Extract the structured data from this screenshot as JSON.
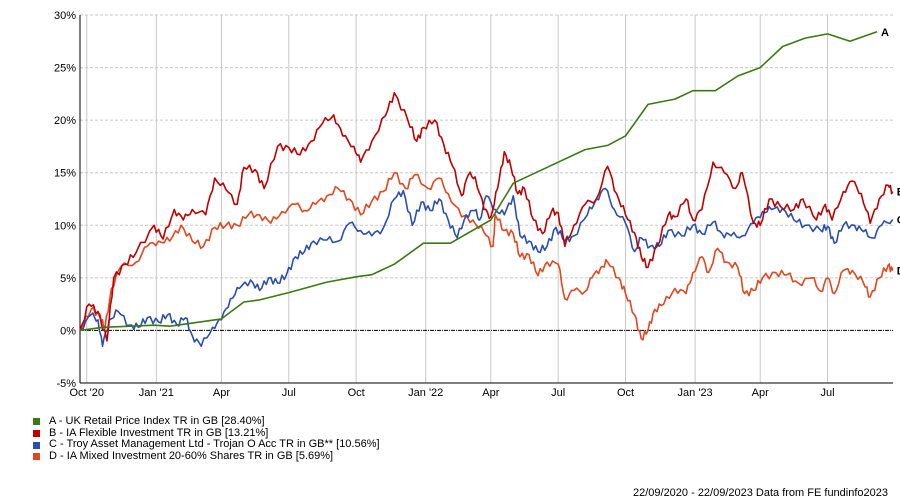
{
  "chart_data": {
    "type": "line",
    "title": "",
    "xlabel": "",
    "ylabel": "",
    "x_unit": "months since 22/09/2020",
    "ylim": [
      -5,
      30
    ],
    "xlim": [
      0,
      36.2
    ],
    "yticks": [
      {
        "value": 30,
        "label": "30%"
      },
      {
        "value": 25,
        "label": "25%"
      },
      {
        "value": 20,
        "label": "20%"
      },
      {
        "value": 15,
        "label": "15%"
      },
      {
        "value": 10,
        "label": "10%"
      },
      {
        "value": 5,
        "label": "5%"
      },
      {
        "value": 0,
        "label": "0%"
      },
      {
        "value": -5,
        "label": "-5%"
      }
    ],
    "xticks": [
      {
        "value": 0.3,
        "label": "Oct '20"
      },
      {
        "value": 3.4,
        "label": "Jan '21"
      },
      {
        "value": 6.3,
        "label": "Apr"
      },
      {
        "value": 9.3,
        "label": "Jul"
      },
      {
        "value": 12.3,
        "label": "Oct"
      },
      {
        "value": 15.4,
        "label": "Jan '22"
      },
      {
        "value": 18.3,
        "label": "Apr"
      },
      {
        "value": 21.3,
        "label": "Jul"
      },
      {
        "value": 24.3,
        "label": "Oct"
      },
      {
        "value": 27.4,
        "label": "Jan '23"
      },
      {
        "value": 30.3,
        "label": "Apr"
      },
      {
        "value": 33.3,
        "label": "Jul"
      }
    ],
    "grid": true,
    "legend_placement": "bottom-left",
    "series": [
      {
        "name": "A - UK Retail Price Index TR in GB [28.40%]",
        "end_label": "A",
        "color": "#3a7a12",
        "points": [
          [
            0,
            0
          ],
          [
            1,
            0.3
          ],
          [
            3.3,
            0.5
          ],
          [
            4,
            0.4
          ],
          [
            5,
            0.7
          ],
          [
            6.3,
            1.1
          ],
          [
            7.3,
            2.7
          ],
          [
            8,
            2.9
          ],
          [
            9.3,
            3.6
          ],
          [
            11,
            4.6
          ],
          [
            12.3,
            5.1
          ],
          [
            13,
            5.3
          ],
          [
            14,
            6.3
          ],
          [
            15.3,
            8.3
          ],
          [
            16.5,
            8.3
          ],
          [
            18.3,
            10.5
          ],
          [
            19.3,
            14.0
          ],
          [
            21.3,
            16.0
          ],
          [
            22.5,
            17.2
          ],
          [
            23.5,
            17.6
          ],
          [
            24.3,
            18.5
          ],
          [
            25.3,
            21.5
          ],
          [
            26.5,
            22.0
          ],
          [
            27.3,
            22.8
          ],
          [
            28.3,
            22.8
          ],
          [
            29.3,
            24.2
          ],
          [
            30.3,
            25.0
          ],
          [
            31.3,
            27.0
          ],
          [
            32.3,
            27.8
          ],
          [
            33.3,
            28.2
          ],
          [
            34.3,
            27.5
          ],
          [
            35.5,
            28.4
          ]
        ]
      },
      {
        "name": "B - IA Flexible Investment TR in GB [13.21%]",
        "end_label": "B",
        "color": "#c00000",
        "points": [
          [
            0,
            0
          ],
          [
            0.4,
            2.5
          ],
          [
            0.8,
            1.8
          ],
          [
            1.2,
            -1
          ],
          [
            1.5,
            5.0
          ],
          [
            2,
            6.3
          ],
          [
            2.5,
            7.4
          ],
          [
            3.3,
            10
          ],
          [
            3.7,
            8.7
          ],
          [
            4.2,
            11.5
          ],
          [
            4.6,
            10.5
          ],
          [
            5,
            11.5
          ],
          [
            5.6,
            11
          ],
          [
            6,
            14.5
          ],
          [
            6.5,
            13.4
          ],
          [
            7,
            12.0
          ],
          [
            7.3,
            15.5
          ],
          [
            7.8,
            15.3
          ],
          [
            8.2,
            13.5
          ],
          [
            8.8,
            17.5
          ],
          [
            9.3,
            17.4
          ],
          [
            9.8,
            16.7
          ],
          [
            10.3,
            18.0
          ],
          [
            10.8,
            19.7
          ],
          [
            11.3,
            20.5
          ],
          [
            11.7,
            18.5
          ],
          [
            12.2,
            17.5
          ],
          [
            12.5,
            16.0
          ],
          [
            13,
            18.0
          ],
          [
            13.6,
            20.4
          ],
          [
            14.0,
            22.6
          ],
          [
            14.6,
            20.0
          ],
          [
            15,
            18.0
          ],
          [
            15.3,
            19.3
          ],
          [
            15.8,
            20.0
          ],
          [
            16.2,
            17.7
          ],
          [
            16.6,
            15.6
          ],
          [
            17,
            12.8
          ],
          [
            17.3,
            14.8
          ],
          [
            17.6,
            14.6
          ],
          [
            18,
            11.5
          ],
          [
            18.3,
            10.8
          ],
          [
            18.6,
            13.5
          ],
          [
            18.9,
            17.0
          ],
          [
            19.2,
            15.5
          ],
          [
            19.5,
            13.0
          ],
          [
            19.8,
            13.5
          ],
          [
            20.2,
            10.5
          ],
          [
            20.6,
            9.2
          ],
          [
            21.0,
            11.3
          ],
          [
            21.3,
            11.2
          ],
          [
            21.6,
            8.0
          ],
          [
            22,
            10.0
          ],
          [
            22.5,
            12.0
          ],
          [
            23,
            12.5
          ],
          [
            23.5,
            15.6
          ],
          [
            23.9,
            13.0
          ],
          [
            24.3,
            11.0
          ],
          [
            24.7,
            9.3
          ],
          [
            25,
            7.0
          ],
          [
            25.3,
            6.0
          ],
          [
            25.7,
            8.0
          ],
          [
            26.2,
            11.0
          ],
          [
            26.5,
            10.8
          ],
          [
            27,
            12.5
          ],
          [
            27.3,
            10.5
          ],
          [
            27.7,
            11.5
          ],
          [
            28.2,
            16.0
          ],
          [
            28.7,
            15.0
          ],
          [
            29.2,
            13.5
          ],
          [
            29.5,
            15.0
          ],
          [
            30,
            10.2
          ],
          [
            30.3,
            10.0
          ],
          [
            30.7,
            12.5
          ],
          [
            31.2,
            11.8
          ],
          [
            31.8,
            11.5
          ],
          [
            32.2,
            12.5
          ],
          [
            32.8,
            10.5
          ],
          [
            33.2,
            12.0
          ],
          [
            33.5,
            10.5
          ],
          [
            34,
            13.2
          ],
          [
            34.4,
            14.2
          ],
          [
            34.8,
            13.0
          ],
          [
            35.2,
            10.2
          ],
          [
            35.6,
            12.5
          ],
          [
            36,
            13.8
          ],
          [
            36.2,
            13.21
          ]
        ]
      },
      {
        "name": "C - Troy Asset Management Ltd - Trojan O Acc TR in GB** [10.56%]",
        "end_label": "C",
        "color": "#2a4fb0",
        "points": [
          [
            0,
            0
          ],
          [
            0.5,
            1.5
          ],
          [
            0.8,
            1.0
          ],
          [
            1.0,
            -1.5
          ],
          [
            1.3,
            1.0
          ],
          [
            1.7,
            1.8
          ],
          [
            2.2,
            0.5
          ],
          [
            2.6,
            0.3
          ],
          [
            3.0,
            1.2
          ],
          [
            3.5,
            0.8
          ],
          [
            3.9,
            1.5
          ],
          [
            4.3,
            0.6
          ],
          [
            4.7,
            1.2
          ],
          [
            5,
            -0.5
          ],
          [
            5.4,
            -1.5
          ],
          [
            5.9,
            0.3
          ],
          [
            6.3,
            1.0
          ],
          [
            6.7,
            3.0
          ],
          [
            7.1,
            4.0
          ],
          [
            7.6,
            4.8
          ],
          [
            8.0,
            3.8
          ],
          [
            8.4,
            5.0
          ],
          [
            8.8,
            4.5
          ],
          [
            9.2,
            5.3
          ],
          [
            9.6,
            7.0
          ],
          [
            10,
            7.5
          ],
          [
            10.4,
            8.5
          ],
          [
            11,
            8.6
          ],
          [
            11.5,
            8.5
          ],
          [
            12,
            10.2
          ],
          [
            12.5,
            9.5
          ],
          [
            13,
            9.0
          ],
          [
            13.5,
            9.7
          ],
          [
            14,
            12.5
          ],
          [
            14.4,
            13.3
          ],
          [
            14.8,
            10.0
          ],
          [
            15.2,
            12.2
          ],
          [
            15.6,
            11.4
          ],
          [
            16,
            12.5
          ],
          [
            16.4,
            10.5
          ],
          [
            16.8,
            8.8
          ],
          [
            17.2,
            11.0
          ],
          [
            17.6,
            11.4
          ],
          [
            17.8,
            10.5
          ],
          [
            18.1,
            12.8
          ],
          [
            18.5,
            11.5
          ],
          [
            18.9,
            11.0
          ],
          [
            19.3,
            12.8
          ],
          [
            19.6,
            9.0
          ],
          [
            20,
            8.5
          ],
          [
            20.4,
            7.5
          ],
          [
            20.8,
            8.0
          ],
          [
            21.2,
            9.8
          ],
          [
            21.6,
            8.5
          ],
          [
            22.0,
            9.0
          ],
          [
            22.6,
            11.0
          ],
          [
            23.0,
            12.5
          ],
          [
            23.4,
            13.5
          ],
          [
            23.8,
            11.5
          ],
          [
            24.3,
            10.2
          ],
          [
            24.7,
            7.5
          ],
          [
            25,
            8.8
          ],
          [
            25.4,
            8.0
          ],
          [
            25.8,
            8.0
          ],
          [
            26.2,
            9.5
          ],
          [
            26.8,
            9.0
          ],
          [
            27.3,
            10.0
          ],
          [
            27.7,
            9.2
          ],
          [
            28.2,
            10.3
          ],
          [
            28.6,
            9.2
          ],
          [
            29.0,
            9.0
          ],
          [
            29.5,
            9.0
          ],
          [
            30.0,
            10.2
          ],
          [
            30.4,
            11.3
          ],
          [
            30.8,
            11.5
          ],
          [
            31.3,
            11.6
          ],
          [
            31.8,
            10.5
          ],
          [
            32.3,
            10.0
          ],
          [
            33,
            9.5
          ],
          [
            33.3,
            9.9
          ],
          [
            33.6,
            8.3
          ],
          [
            34,
            10.0
          ],
          [
            34.5,
            10.0
          ],
          [
            34.9,
            9.4
          ],
          [
            35.3,
            8.8
          ],
          [
            35.7,
            10.0
          ],
          [
            36.2,
            10.56
          ]
        ]
      },
      {
        "name": "D - IA Mixed Investment 20-60% Shares TR in GB [5.69%]",
        "end_label": "D",
        "color": "#e4461e",
        "points": [
          [
            0,
            0
          ],
          [
            0.5,
            2.0
          ],
          [
            0.9,
            1.5
          ],
          [
            1.1,
            0
          ],
          [
            1.4,
            4.0
          ],
          [
            1.8,
            6.0
          ],
          [
            2.5,
            6.5
          ],
          [
            3.0,
            8.0
          ],
          [
            3.5,
            8.5
          ],
          [
            4.0,
            8.5
          ],
          [
            4.5,
            10.0
          ],
          [
            5.0,
            8.5
          ],
          [
            5.5,
            8.0
          ],
          [
            6.0,
            9.8
          ],
          [
            6.5,
            10.0
          ],
          [
            7.0,
            10.0
          ],
          [
            7.5,
            11.0
          ],
          [
            8.0,
            11.0
          ],
          [
            8.5,
            10.2
          ],
          [
            9,
            11.3
          ],
          [
            9.6,
            12.0
          ],
          [
            10,
            11.4
          ],
          [
            10.5,
            12.0
          ],
          [
            11,
            12.8
          ],
          [
            11.5,
            13.5
          ],
          [
            12,
            12.5
          ],
          [
            12.5,
            11.0
          ],
          [
            13,
            12.3
          ],
          [
            13.5,
            13.2
          ],
          [
            14,
            15.0
          ],
          [
            14.5,
            13.5
          ],
          [
            14.9,
            14.8
          ],
          [
            15.5,
            13.5
          ],
          [
            16,
            14.5
          ],
          [
            16.4,
            13.0
          ],
          [
            17,
            10.8
          ],
          [
            17.5,
            10.5
          ],
          [
            18,
            9.3
          ],
          [
            18.4,
            8.0
          ],
          [
            18.5,
            11.0
          ],
          [
            18.9,
            9.5
          ],
          [
            19.3,
            9.2
          ],
          [
            19.6,
            7.0
          ],
          [
            20,
            7.2
          ],
          [
            20.4,
            5.2
          ],
          [
            20.8,
            6.5
          ],
          [
            21.3,
            6.3
          ],
          [
            21.6,
            3.0
          ],
          [
            22.0,
            3.8
          ],
          [
            22.5,
            3.7
          ],
          [
            22.8,
            5.0
          ],
          [
            23.2,
            6.0
          ],
          [
            23.5,
            6.5
          ],
          [
            24.0,
            5.0
          ],
          [
            24.3,
            3.5
          ],
          [
            24.7,
            1.5
          ],
          [
            25,
            -0.8
          ],
          [
            25.3,
            0.0
          ],
          [
            25.6,
            2.0
          ],
          [
            26,
            2.5
          ],
          [
            26.5,
            4.0
          ],
          [
            27,
            3.5
          ],
          [
            27.3,
            5.5
          ],
          [
            27.7,
            7.0
          ],
          [
            28.0,
            5.5
          ],
          [
            28.4,
            7.8
          ],
          [
            28.8,
            6.5
          ],
          [
            29.3,
            6.0
          ],
          [
            29.6,
            3.5
          ],
          [
            30,
            3.8
          ],
          [
            30.4,
            5.0
          ],
          [
            31,
            5.5
          ],
          [
            31.5,
            5.3
          ],
          [
            32,
            4.5
          ],
          [
            32.6,
            5.0
          ],
          [
            33.0,
            3.7
          ],
          [
            33.3,
            5.0
          ],
          [
            33.6,
            3.5
          ],
          [
            34.0,
            5.7
          ],
          [
            34.4,
            5.7
          ],
          [
            34.9,
            4.5
          ],
          [
            35.2,
            3.2
          ],
          [
            35.6,
            5.0
          ],
          [
            36,
            6.2
          ],
          [
            36.2,
            5.69
          ]
        ]
      }
    ]
  },
  "footer": "22/09/2020 - 22/09/2023 Data from FE fundinfo2023"
}
